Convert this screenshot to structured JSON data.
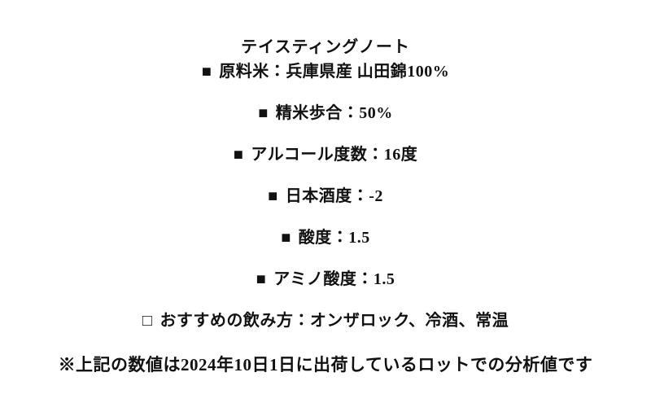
{
  "colors": {
    "text": "#111111",
    "background": "#ffffff"
  },
  "tasting_note": {
    "title": "テイスティングノート",
    "items": [
      {
        "bullet": "■",
        "text": "原料米：兵庫県産 山田錦100%"
      },
      {
        "bullet": "■",
        "text": "精米歩合：50%"
      },
      {
        "bullet": "■",
        "text": "アルコール度数：16度"
      },
      {
        "bullet": "■",
        "text": "日本酒度：-2"
      },
      {
        "bullet": "■",
        "text": "酸度：1.5"
      },
      {
        "bullet": "■",
        "text": "アミノ酸度：1.5"
      },
      {
        "bullet": "□",
        "text": "おすすめの飲み方：オンザロック、冷酒、常温"
      }
    ],
    "footnote": "※上記の数値は2024年10日1日に出荷しているロットでの分析値です"
  }
}
